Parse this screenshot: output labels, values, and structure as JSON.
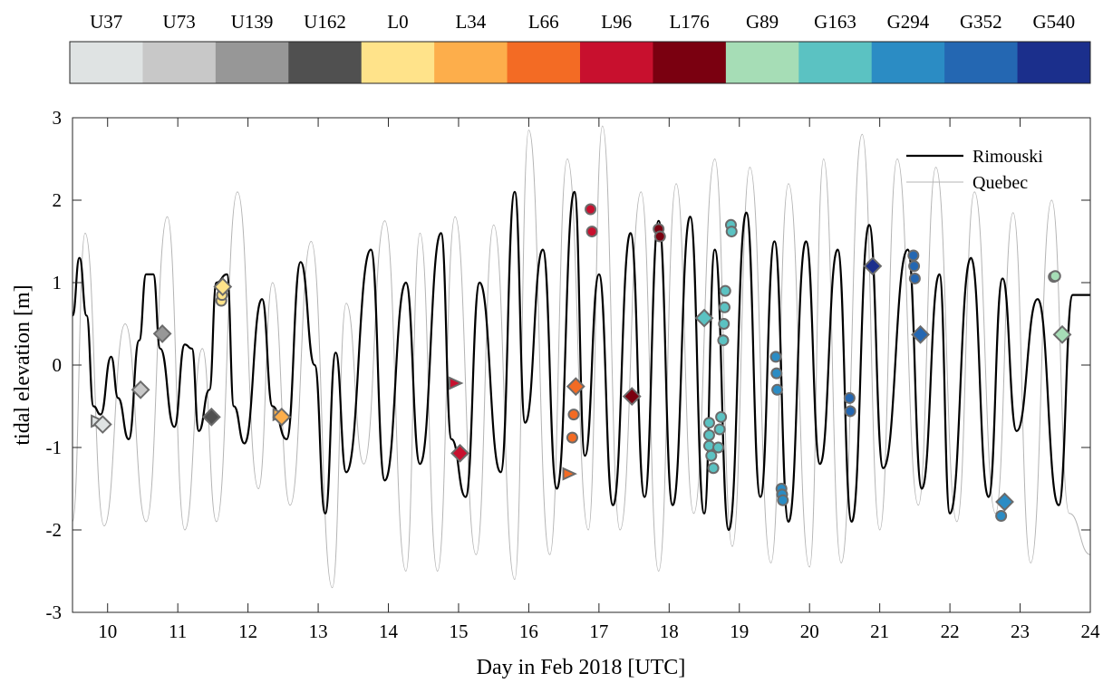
{
  "chart_data": {
    "type": "line",
    "xlabel": "Day in Feb 2018 [UTC]",
    "ylabel": "tidal elevation [m]",
    "xlim": [
      9.5,
      24
    ],
    "ylim": [
      -3,
      3
    ],
    "xticks": [
      "10",
      "11",
      "12",
      "13",
      "14",
      "15",
      "16",
      "17",
      "18",
      "19",
      "20",
      "21",
      "22",
      "23",
      "24"
    ],
    "yticks": [
      "-3",
      "-2",
      "-1",
      "0",
      "1",
      "2",
      "3"
    ],
    "grid": false,
    "legend_position": "top-right",
    "legend": [
      {
        "label": "Rimouski",
        "color": "#000000"
      },
      {
        "label": "Quebec",
        "color": "#b4b4b4"
      }
    ],
    "colorbar": {
      "position": "top",
      "labels": [
        "U37",
        "U73",
        "U139",
        "U162",
        "L0",
        "L34",
        "L66",
        "L96",
        "L176",
        "G89",
        "G163",
        "G294",
        "G352",
        "G540"
      ],
      "colors": [
        "#dfe3e3",
        "#c8c8c8",
        "#979797",
        "#505050",
        "#ffe38a",
        "#fdae4b",
        "#f36b24",
        "#c8102e",
        "#7a0010",
        "#a6ddb6",
        "#5bc2c2",
        "#2b8cc4",
        "#2467b2",
        "#1b2f8c"
      ]
    },
    "series": [
      {
        "name": "Rimouski",
        "color": "#000000",
        "x": [
          9.5,
          9.6,
          9.7,
          9.8,
          9.9,
          10.05,
          10.15,
          10.3,
          10.45,
          10.55,
          10.65,
          10.75,
          10.95,
          11.1,
          11.2,
          11.3,
          11.45,
          11.55,
          11.7,
          11.8,
          11.95,
          12.2,
          12.35,
          12.55,
          12.75,
          12.95,
          13.1,
          13.25,
          13.4,
          13.75,
          13.95,
          14.25,
          14.45,
          14.75,
          14.9,
          15.1,
          15.3,
          15.6,
          15.8,
          15.95,
          16.2,
          16.4,
          16.65,
          16.8,
          17.0,
          17.2,
          17.45,
          17.65,
          17.85,
          18.05,
          18.3,
          18.5,
          18.65,
          18.85,
          19.1,
          19.3,
          19.5,
          19.7,
          19.95,
          20.15,
          20.4,
          20.6,
          20.85,
          21.05,
          21.4,
          21.6,
          21.85,
          22.0,
          22.3,
          22.55,
          22.75,
          22.95,
          23.25,
          23.55,
          23.75,
          24.0
        ],
        "y": [
          0.6,
          1.3,
          0.6,
          -0.5,
          -0.6,
          0.1,
          -0.4,
          -0.9,
          0.3,
          1.1,
          1.1,
          0.2,
          -0.75,
          0.25,
          0.2,
          -0.8,
          -0.3,
          1.0,
          1.1,
          -0.5,
          -0.95,
          0.8,
          -0.5,
          -0.9,
          1.25,
          0.0,
          -1.8,
          0.15,
          -1.3,
          1.4,
          -1.4,
          1.0,
          -1.2,
          1.6,
          -0.9,
          -1.6,
          1.0,
          -1.3,
          2.1,
          -0.7,
          1.4,
          -1.5,
          2.1,
          -1.1,
          1.1,
          -1.7,
          1.6,
          -1.6,
          1.75,
          -1.7,
          1.8,
          -1.8,
          1.4,
          -2.0,
          1.85,
          -1.6,
          1.5,
          -1.9,
          1.5,
          -1.2,
          1.4,
          -1.9,
          1.7,
          -1.25,
          1.4,
          -1.5,
          1.1,
          -1.8,
          1.3,
          -1.6,
          1.05,
          -0.8,
          0.8,
          -1.7,
          0.85,
          0.85
        ]
      },
      {
        "name": "Quebec",
        "color": "#b4b4b4",
        "x": [
          9.5,
          9.68,
          9.95,
          10.25,
          10.55,
          10.85,
          11.1,
          11.35,
          11.55,
          11.85,
          12.15,
          12.35,
          12.6,
          12.9,
          13.2,
          13.4,
          13.65,
          13.95,
          14.25,
          14.45,
          14.7,
          14.95,
          15.25,
          15.5,
          15.8,
          16.0,
          16.3,
          16.55,
          16.85,
          17.05,
          17.3,
          17.6,
          17.85,
          18.1,
          18.35,
          18.65,
          18.9,
          19.15,
          19.45,
          19.7,
          20.0,
          20.2,
          20.45,
          20.75,
          21.0,
          21.25,
          21.55,
          21.8,
          22.1,
          22.35,
          22.65,
          22.9,
          23.15,
          23.45,
          23.7,
          24.0
        ],
        "y": [
          -1.9,
          1.6,
          -1.95,
          0.5,
          -1.9,
          1.8,
          -2.0,
          0.2,
          -1.9,
          2.1,
          -1.5,
          1.0,
          -1.7,
          1.5,
          -2.7,
          0.75,
          -1.2,
          1.75,
          -2.5,
          1.6,
          -2.5,
          1.8,
          -2.3,
          1.7,
          -2.6,
          2.85,
          -2.3,
          2.5,
          -2.0,
          2.9,
          -2.0,
          2.1,
          -2.5,
          2.2,
          -1.8,
          2.5,
          -2.2,
          2.4,
          -2.4,
          2.2,
          -2.45,
          2.5,
          -2.4,
          2.8,
          -2.0,
          2.5,
          -1.7,
          2.4,
          -1.9,
          2.1,
          -1.8,
          1.85,
          -2.4,
          2.0,
          -1.8,
          -2.3
        ]
      }
    ],
    "markers": [
      {
        "x": 9.85,
        "y": -0.68,
        "shape": "triangle",
        "color": "#dfe3e3"
      },
      {
        "x": 9.93,
        "y": -0.72,
        "shape": "diamond",
        "color": "#dfe3e3"
      },
      {
        "x": 10.47,
        "y": -0.3,
        "shape": "diamond",
        "color": "#c8c8c8"
      },
      {
        "x": 10.78,
        "y": 0.38,
        "shape": "diamond",
        "color": "#979797"
      },
      {
        "x": 11.48,
        "y": -0.63,
        "shape": "diamond",
        "color": "#505050"
      },
      {
        "x": 11.62,
        "y": 0.78,
        "shape": "circle",
        "color": "#ffe38a"
      },
      {
        "x": 11.63,
        "y": 0.85,
        "shape": "circle",
        "color": "#ffe38a"
      },
      {
        "x": 11.64,
        "y": 0.95,
        "shape": "diamond",
        "color": "#ffe38a"
      },
      {
        "x": 12.44,
        "y": -0.6,
        "shape": "triangle",
        "color": "#fdae4b"
      },
      {
        "x": 12.48,
        "y": -0.63,
        "shape": "diamond",
        "color": "#fdae4b"
      },
      {
        "x": 14.95,
        "y": -0.22,
        "shape": "triangle",
        "color": "#c8102e"
      },
      {
        "x": 15.02,
        "y": -1.07,
        "shape": "diamond",
        "color": "#c8102e"
      },
      {
        "x": 16.57,
        "y": -1.32,
        "shape": "triangle",
        "color": "#f36b24"
      },
      {
        "x": 16.62,
        "y": -0.88,
        "shape": "circle",
        "color": "#f36b24"
      },
      {
        "x": 16.64,
        "y": -0.6,
        "shape": "circle",
        "color": "#f36b24"
      },
      {
        "x": 16.67,
        "y": -0.26,
        "shape": "diamond",
        "color": "#f36b24"
      },
      {
        "x": 16.88,
        "y": 1.89,
        "shape": "circle",
        "color": "#c8102e"
      },
      {
        "x": 16.9,
        "y": 1.62,
        "shape": "circle",
        "color": "#c8102e"
      },
      {
        "x": 17.47,
        "y": -0.38,
        "shape": "diamond",
        "color": "#7a0010"
      },
      {
        "x": 17.85,
        "y": 1.65,
        "shape": "circle",
        "color": "#7a0010"
      },
      {
        "x": 17.87,
        "y": 1.56,
        "shape": "circle",
        "color": "#7a0010"
      },
      {
        "x": 18.5,
        "y": 0.57,
        "shape": "diamond",
        "color": "#5bc2c2"
      },
      {
        "x": 18.57,
        "y": -0.7,
        "shape": "circle",
        "color": "#5bc2c2"
      },
      {
        "x": 18.57,
        "y": -0.85,
        "shape": "circle",
        "color": "#5bc2c2"
      },
      {
        "x": 18.57,
        "y": -0.98,
        "shape": "circle",
        "color": "#5bc2c2"
      },
      {
        "x": 18.6,
        "y": -1.1,
        "shape": "circle",
        "color": "#5bc2c2"
      },
      {
        "x": 18.63,
        "y": -1.25,
        "shape": "circle",
        "color": "#5bc2c2"
      },
      {
        "x": 18.7,
        "y": -1.0,
        "shape": "circle",
        "color": "#5bc2c2"
      },
      {
        "x": 18.72,
        "y": -0.78,
        "shape": "circle",
        "color": "#5bc2c2"
      },
      {
        "x": 18.74,
        "y": -0.63,
        "shape": "circle",
        "color": "#5bc2c2"
      },
      {
        "x": 18.77,
        "y": 0.3,
        "shape": "circle",
        "color": "#5bc2c2"
      },
      {
        "x": 18.78,
        "y": 0.5,
        "shape": "circle",
        "color": "#5bc2c2"
      },
      {
        "x": 18.79,
        "y": 0.7,
        "shape": "circle",
        "color": "#5bc2c2"
      },
      {
        "x": 18.8,
        "y": 0.9,
        "shape": "circle",
        "color": "#5bc2c2"
      },
      {
        "x": 18.88,
        "y": 1.7,
        "shape": "circle",
        "color": "#5bc2c2"
      },
      {
        "x": 18.89,
        "y": 1.62,
        "shape": "circle",
        "color": "#5bc2c2"
      },
      {
        "x": 19.52,
        "y": 0.1,
        "shape": "circle",
        "color": "#2b8cc4"
      },
      {
        "x": 19.53,
        "y": -0.1,
        "shape": "circle",
        "color": "#2b8cc4"
      },
      {
        "x": 19.54,
        "y": -0.3,
        "shape": "circle",
        "color": "#2b8cc4"
      },
      {
        "x": 19.6,
        "y": -1.5,
        "shape": "circle",
        "color": "#2b8cc4"
      },
      {
        "x": 19.61,
        "y": -1.57,
        "shape": "circle",
        "color": "#2b8cc4"
      },
      {
        "x": 19.62,
        "y": -1.64,
        "shape": "circle",
        "color": "#2b8cc4"
      },
      {
        "x": 20.57,
        "y": -0.4,
        "shape": "circle",
        "color": "#2467b2"
      },
      {
        "x": 20.58,
        "y": -0.56,
        "shape": "circle",
        "color": "#2467b2"
      },
      {
        "x": 20.9,
        "y": 1.2,
        "shape": "diamond",
        "color": "#1b2f8c"
      },
      {
        "x": 21.48,
        "y": 1.33,
        "shape": "circle",
        "color": "#2467b2"
      },
      {
        "x": 21.49,
        "y": 1.2,
        "shape": "circle",
        "color": "#2467b2"
      },
      {
        "x": 21.5,
        "y": 1.05,
        "shape": "circle",
        "color": "#2467b2"
      },
      {
        "x": 21.58,
        "y": 0.37,
        "shape": "diamond",
        "color": "#2467b2"
      },
      {
        "x": 22.73,
        "y": -1.83,
        "shape": "circle",
        "color": "#2b8cc4"
      },
      {
        "x": 22.78,
        "y": -1.66,
        "shape": "diamond",
        "color": "#2b8cc4"
      },
      {
        "x": 23.48,
        "y": 1.07,
        "shape": "circle",
        "color": "#a6ddb6"
      },
      {
        "x": 23.5,
        "y": 1.08,
        "shape": "circle",
        "color": "#a6ddb6"
      },
      {
        "x": 23.6,
        "y": 0.37,
        "shape": "diamond",
        "color": "#a6ddb6"
      }
    ]
  }
}
